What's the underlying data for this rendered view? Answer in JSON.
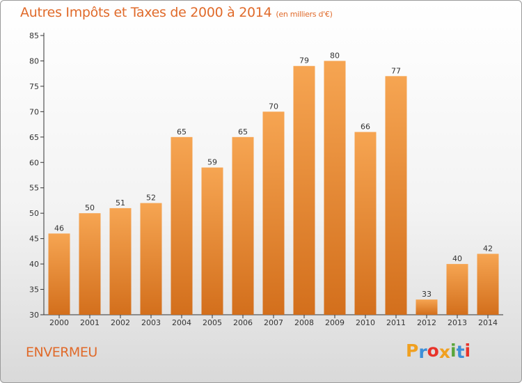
{
  "header": {
    "title": "Autres Impôts et Taxes de 2000 à 2014",
    "unit": "(en milliers d'€)"
  },
  "footer": {
    "commune": "ENVERMEU",
    "logo_letters": [
      "P",
      "r",
      "o",
      "x",
      "i",
      "t",
      "i"
    ],
    "logo_colors": [
      "#f0a020",
      "#3d8fd8",
      "#e8332a",
      "#f0a020",
      "#5aa63c",
      "#3d8fd8",
      "#e8332a"
    ]
  },
  "colors": {
    "accent": "#e06a2a",
    "bar_top": "#f6a552",
    "bar_bottom": "#d36f1c"
  },
  "chart_data": {
    "type": "bar",
    "title": "Autres Impôts et Taxes de 2000 à 2014",
    "subtitle": "(en milliers d'€)",
    "categories": [
      "2000",
      "2001",
      "2002",
      "2003",
      "2004",
      "2005",
      "2006",
      "2007",
      "2008",
      "2009",
      "2010",
      "2011",
      "2012",
      "2013",
      "2014"
    ],
    "values": [
      46,
      50,
      51,
      52,
      65,
      59,
      65,
      70,
      79,
      80,
      66,
      77,
      33,
      40,
      42
    ],
    "ylim": [
      30,
      85
    ],
    "yticks": [
      30,
      35,
      40,
      45,
      50,
      55,
      60,
      65,
      70,
      75,
      80,
      85
    ],
    "grid": false,
    "data_labels": true
  }
}
